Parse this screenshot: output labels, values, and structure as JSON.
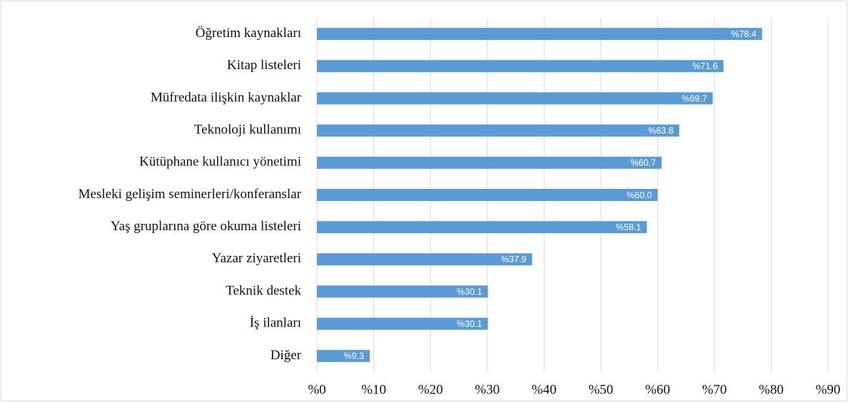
{
  "chart_data": {
    "type": "bar",
    "orientation": "horizontal",
    "categories": [
      "Öğretim kaynakları",
      "Kitap listeleri",
      "Müfredata ilişkin kaynaklar",
      "Teknoloji kullanımı",
      "Kütüphane kullanıcı yönetimi",
      "Mesleki gelişim seminerleri/konferanslar",
      "Yaş gruplarına göre okuma listeleri",
      "Yazar ziyaretleri",
      "Teknik destek",
      "İş ilanları",
      "Diğer"
    ],
    "values": [
      78.4,
      71.6,
      69.7,
      63.8,
      60.7,
      60.0,
      58.1,
      37.9,
      30.1,
      30.1,
      9.3
    ],
    "value_labels": [
      "%78.4",
      "%71.6",
      "%69.7",
      "%63.8",
      "%60.7",
      "%60.0",
      "%58.1",
      "%37.9",
      "%30.1",
      "%30.1",
      "%9.3"
    ],
    "color": "#5b9bd5",
    "xlim": [
      0,
      90
    ],
    "xticks": [
      {
        "value": 0,
        "label": "%0"
      },
      {
        "value": 10,
        "label": "%10"
      },
      {
        "value": 20,
        "label": "%20"
      },
      {
        "value": 30,
        "label": "%30"
      },
      {
        "value": 40,
        "label": "%40"
      },
      {
        "value": 50,
        "label": "%50"
      },
      {
        "value": 60,
        "label": "%60"
      },
      {
        "value": 70,
        "label": "%70"
      },
      {
        "value": 80,
        "label": "%80"
      },
      {
        "value": 90,
        "label": "%90"
      }
    ],
    "grid": true
  }
}
